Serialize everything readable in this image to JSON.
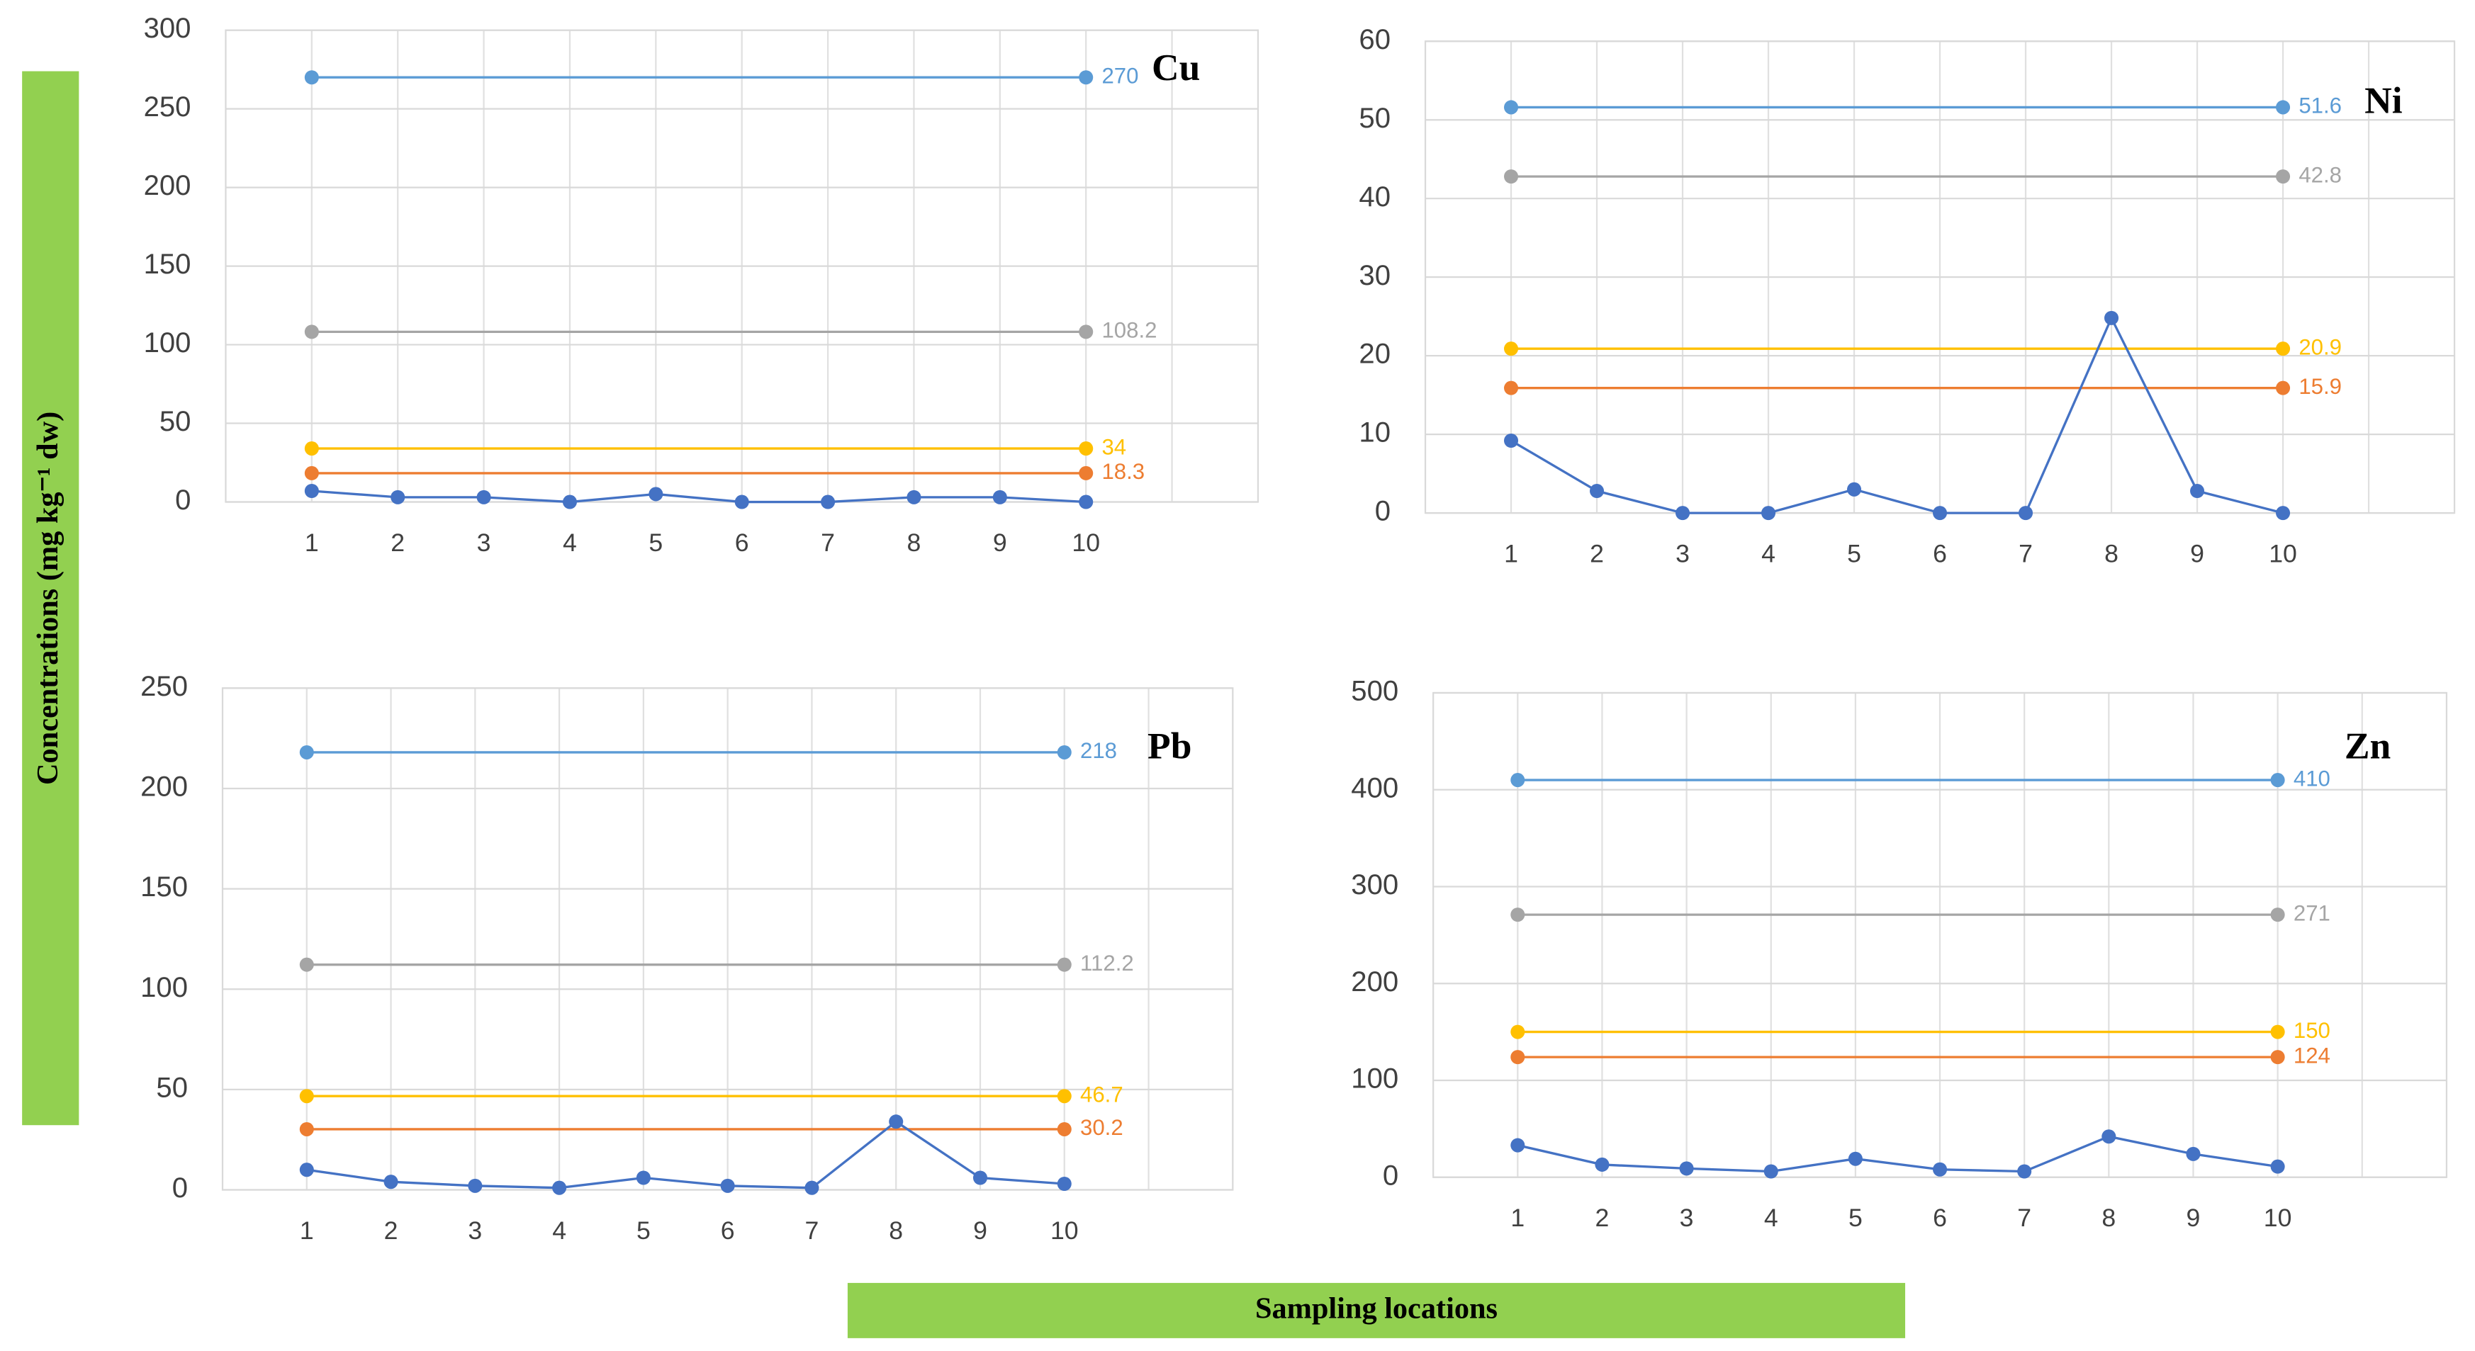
{
  "figure": {
    "ylabel": "Concentrations (mg kg⁻¹ dw)",
    "xlabel": "Sampling locations"
  },
  "chart_data": [
    {
      "type": "line",
      "title": "Cu",
      "categories": [
        "1",
        "2",
        "3",
        "4",
        "5",
        "6",
        "7",
        "8",
        "9",
        "10"
      ],
      "series": [
        {
          "color": "#4472c4",
          "values": [
            7,
            3,
            3,
            0,
            5,
            0,
            0,
            3,
            3,
            0
          ]
        }
      ],
      "reference_lines": [
        {
          "value": 270,
          "color": "#5b9bd5"
        },
        {
          "value": 108.2,
          "color": "#a5a5a5"
        },
        {
          "value": 34,
          "color": "#ffc000"
        },
        {
          "value": 18.3,
          "color": "#ed7d31"
        }
      ],
      "ylim": [
        0,
        300
      ],
      "yticks": [
        0,
        50,
        100,
        150,
        200,
        250,
        300
      ],
      "grid": true
    },
    {
      "type": "line",
      "title": "Ni",
      "categories": [
        "1",
        "2",
        "3",
        "4",
        "5",
        "6",
        "7",
        "8",
        "9",
        "10"
      ],
      "series": [
        {
          "color": "#4472c4",
          "values": [
            9.2,
            2.8,
            0,
            0,
            3,
            0,
            0,
            24.8,
            2.8,
            0
          ]
        }
      ],
      "reference_lines": [
        {
          "value": 51.6,
          "color": "#5b9bd5"
        },
        {
          "value": 42.8,
          "color": "#a5a5a5"
        },
        {
          "value": 20.9,
          "color": "#ffc000"
        },
        {
          "value": 15.9,
          "color": "#ed7d31"
        }
      ],
      "ylim": [
        0,
        60
      ],
      "yticks": [
        0,
        10,
        20,
        30,
        40,
        50,
        60
      ],
      "grid": true
    },
    {
      "type": "line",
      "title": "Pb",
      "categories": [
        "1",
        "2",
        "3",
        "4",
        "5",
        "6",
        "7",
        "8",
        "9",
        "10"
      ],
      "series": [
        {
          "color": "#4472c4",
          "values": [
            10,
            4,
            2,
            1,
            6,
            2,
            1,
            34,
            6,
            3
          ]
        }
      ],
      "reference_lines": [
        {
          "value": 218,
          "color": "#5b9bd5"
        },
        {
          "value": 112.2,
          "color": "#a5a5a5"
        },
        {
          "value": 46.7,
          "color": "#ffc000"
        },
        {
          "value": 30.2,
          "color": "#ed7d31"
        }
      ],
      "ylim": [
        0,
        250
      ],
      "yticks": [
        0,
        50,
        100,
        150,
        200,
        250
      ],
      "grid": true
    },
    {
      "type": "line",
      "title": "Zn",
      "categories": [
        "1",
        "2",
        "3",
        "4",
        "5",
        "6",
        "7",
        "8",
        "9",
        "10"
      ],
      "series": [
        {
          "color": "#4472c4",
          "values": [
            33,
            13,
            9,
            6,
            19,
            8,
            6,
            42,
            24,
            11
          ]
        }
      ],
      "reference_lines": [
        {
          "value": 410,
          "color": "#5b9bd5"
        },
        {
          "value": 271,
          "color": "#a5a5a5"
        },
        {
          "value": 150,
          "color": "#ffc000"
        },
        {
          "value": 124,
          "color": "#ed7d31"
        }
      ],
      "ylim": [
        0,
        500
      ],
      "yticks": [
        0,
        100,
        200,
        300,
        400,
        500
      ],
      "grid": true
    }
  ]
}
